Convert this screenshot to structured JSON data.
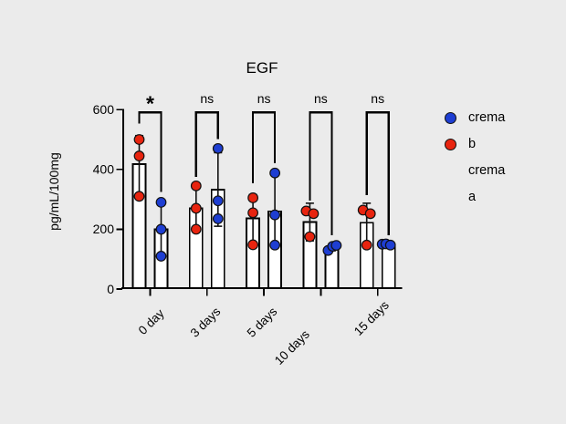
{
  "chart_data": {
    "type": "bar",
    "title": "EGF",
    "ylabel": "pg/mL/100mg",
    "ylim": [
      0,
      600
    ],
    "yticks": [
      0,
      200,
      400,
      600
    ],
    "categories": [
      "0 day",
      "3 days",
      "5 days",
      "10 days",
      "15 days"
    ],
    "grid": false,
    "legend_position": "right",
    "bar_fill": "#ffffff",
    "bar_edge": "#000000",
    "series": [
      {
        "name": "crema a",
        "color": "#e8240f",
        "bar_means": [
          418,
          270,
          236,
          224,
          222
        ],
        "error_low": [
          320,
          200,
          156,
          161,
          157
        ],
        "error_high": [
          513,
          345,
          316,
          287,
          287
        ],
        "points": [
          [
            500,
            445,
            310
          ],
          [
            345,
            270,
            200
          ],
          [
            305,
            255,
            148
          ],
          [
            261,
            252,
            175
          ],
          [
            264,
            252,
            147
          ]
        ],
        "point_dx": [
          [
            0,
            0,
            0
          ],
          [
            0,
            0,
            0
          ],
          [
            0,
            0,
            0
          ],
          [
            -4,
            4,
            0
          ],
          [
            -4,
            4,
            0
          ]
        ]
      },
      {
        "name": "crema b",
        "color": "#1e3ed2",
        "bar_means": [
          200,
          332,
          260,
          138,
          148
        ],
        "error_low": [
          110,
          210,
          138,
          128,
          143
        ],
        "error_high": [
          290,
          456,
          384,
          148,
          153
        ],
        "points": [
          [
            290,
            200,
            110
          ],
          [
            470,
            295,
            235
          ],
          [
            388,
            248,
            147
          ],
          [
            129,
            143,
            146
          ],
          [
            150,
            151,
            147
          ]
        ],
        "point_dx": [
          [
            0,
            0,
            0
          ],
          [
            0,
            0,
            0
          ],
          [
            0,
            0,
            0
          ],
          [
            -4,
            1,
            5
          ],
          [
            -7,
            -3,
            2
          ]
        ]
      }
    ],
    "significance": [
      {
        "label": "*",
        "left_end": 553,
        "right_end": 324
      },
      {
        "label": "ns",
        "left_end": 375,
        "right_end": 501
      },
      {
        "label": "ns",
        "left_end": 354,
        "right_end": 421
      },
      {
        "label": "ns",
        "left_end": 296,
        "right_end": 180
      },
      {
        "label": "ns",
        "left_end": 314,
        "right_end": 180
      }
    ],
    "bracket_top_value": 591
  },
  "legend": {
    "entries": [
      {
        "label": "crema b",
        "color": "#1e3ed2"
      },
      {
        "label": "crema a",
        "color": "#e8240f"
      }
    ],
    "rows": [
      {
        "marker_color": "#1e3ed2",
        "text": "crema"
      },
      {
        "marker_color": "#e8240f",
        "text": "b"
      },
      {
        "marker_color": null,
        "text": "crema"
      },
      {
        "marker_color": null,
        "text": "a"
      }
    ]
  },
  "page": {
    "background": "#ebebeb"
  }
}
